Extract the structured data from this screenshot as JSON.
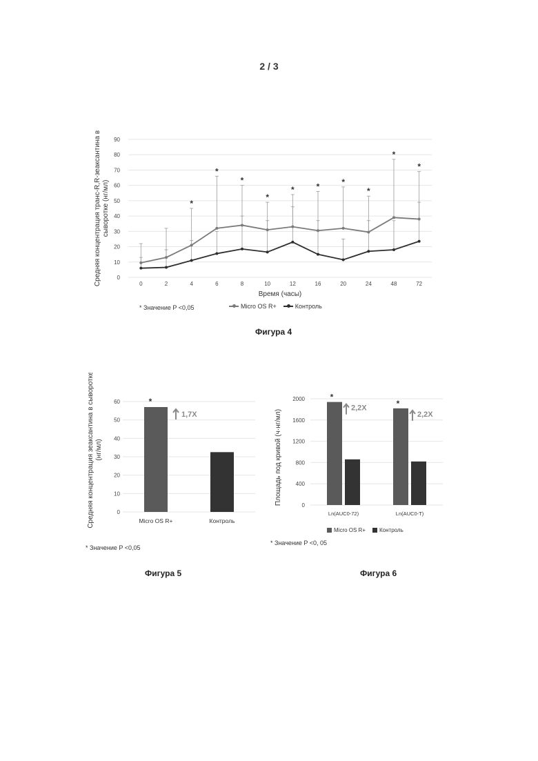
{
  "page_number": "2 / 3",
  "colors": {
    "series_a": "#7a7a7a",
    "series_b": "#2e2e2e",
    "bar_a": "#5a5a5a",
    "bar_b": "#333333",
    "grid": "#e6e6e6",
    "arrow": "#8a8a8a"
  },
  "fig4": {
    "caption": "Фигура 4",
    "note": "* Значение P <0,05",
    "ylabel": "Средняя концентрация транс-R,R-зеаксантина в сыворотке (нг/мл)",
    "ylabel_lines": [
      "Средняя концентрация транс-R,R-зеаксантина в",
      "сыворотке (нг/мл)"
    ]
  },
  "fig5": {
    "caption": "Фигура 5",
    "note": "* Значение P <0,05",
    "ylabel_lines": [
      "Средняя концентрация зеаксантина в сыворотке",
      "(нг/мл)"
    ],
    "arrow_label": "1,7X"
  },
  "fig6": {
    "caption": "Фигура 6",
    "note": "* Значение P <0, 05",
    "ylabel": "Площадь под кривой (ч·нг/мл)",
    "arrow_labels": [
      "2,2X",
      "2,2X"
    ]
  },
  "chart_data": [
    {
      "type": "line",
      "title": "",
      "xlabel": "Время (часы)",
      "ylabel": "Средняя концентрация транс-R,R-зеаксантина в сыворотке (нг/мл)",
      "categories": [
        "0",
        "2",
        "4",
        "6",
        "8",
        "10",
        "12",
        "16",
        "20",
        "24",
        "48",
        "72"
      ],
      "ylim": [
        0,
        90
      ],
      "yticks": [
        0,
        10,
        20,
        30,
        40,
        50,
        60,
        70,
        80,
        90
      ],
      "grid": true,
      "legend": "bottom",
      "significance_marker": "*",
      "significant_points": [
        "4",
        "6",
        "8",
        "10",
        "12",
        "16",
        "20",
        "24",
        "48",
        "72"
      ],
      "series": [
        {
          "name": "Micro OS R+",
          "values": [
            9.5,
            13,
            21,
            32,
            34,
            31,
            33,
            30.5,
            32,
            29.5,
            39,
            38
          ],
          "error_upper": [
            22,
            32,
            45,
            66,
            60,
            49,
            54,
            56,
            59,
            53,
            77,
            69
          ]
        },
        {
          "name": "Контроль",
          "values": [
            6,
            6.5,
            11,
            15.5,
            18.5,
            16.5,
            23,
            15,
            11.5,
            17,
            18,
            23.5
          ],
          "error_upper": [
            13,
            18,
            24,
            30,
            40,
            37,
            46,
            37,
            25,
            37,
            37,
            49
          ]
        }
      ]
    },
    {
      "type": "bar",
      "title": "",
      "ylabel": "Средняя концентрация зеаксантина в сыворотке (нг/мл)",
      "categories": [
        "Micro OS R+",
        "Контроль"
      ],
      "values": [
        57,
        32.5
      ],
      "ylim": [
        0,
        60
      ],
      "yticks": [
        0,
        10,
        20,
        30,
        40,
        50,
        60
      ],
      "grid": true,
      "significance_marker": "*",
      "significant_categories": [
        "Micro OS R+"
      ],
      "annotations": [
        "1,7X"
      ]
    },
    {
      "type": "bar",
      "title": "",
      "ylabel": "Площадь под кривой (ч·нг/мл)",
      "categories": [
        "Ln(AUC0-72)",
        "Ln(AUC0-T)"
      ],
      "ylim": [
        0,
        2000
      ],
      "yticks": [
        0,
        400,
        800,
        1200,
        1600,
        2000
      ],
      "grid": true,
      "legend": "bottom",
      "significance_marker": "*",
      "series": [
        {
          "name": "Micro OS R+",
          "values": [
            1940,
            1820
          ]
        },
        {
          "name": "Контроль",
          "values": [
            860,
            820
          ]
        }
      ],
      "annotations": [
        "2,2X",
        "2,2X"
      ]
    }
  ]
}
